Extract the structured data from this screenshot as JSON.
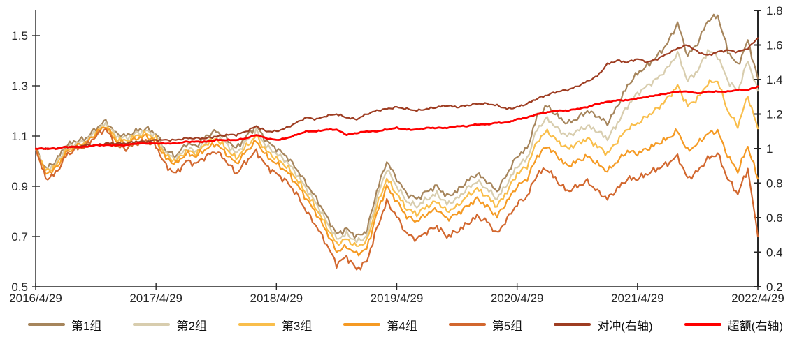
{
  "chart_data": {
    "type": "line",
    "title": "",
    "grid": false,
    "legend_position": "bottom",
    "x_axis": {
      "labels": [
        "2016/4/29",
        "2017/4/29",
        "2018/4/29",
        "2019/4/29",
        "2020/4/29",
        "2021/4/29",
        "2022/4/29"
      ],
      "months_per_label": 12,
      "total_months": 72
    },
    "left_axis": {
      "tick_labels": [
        "1.5",
        "1.3",
        "1.1",
        "0.9",
        "0.7",
        "0.5"
      ],
      "tick_values": [
        1.5,
        1.3,
        1.1,
        0.9,
        0.7,
        0.5
      ],
      "range": [
        0.5,
        1.6
      ]
    },
    "right_axis": {
      "tick_labels": [
        "1.8",
        "1.6",
        "1.4",
        "1.2",
        "1",
        "0.8",
        "0.6",
        "0.4",
        "0.2"
      ],
      "tick_values": [
        1.8,
        1.6,
        1.4,
        1.2,
        1.0,
        0.8,
        0.6,
        0.4,
        0.2
      ],
      "range": [
        0.2,
        1.8
      ]
    },
    "axis_color": "#262626",
    "series": [
      {
        "name": "第1组",
        "axis": "left",
        "color": "#A6855C",
        "width": 2.2,
        "jitter": 0.012,
        "values": [
          1.05,
          0.97,
          1.0,
          1.06,
          1.08,
          1.09,
          1.13,
          1.16,
          1.11,
          1.1,
          1.12,
          1.13,
          1.11,
          1.04,
          1.02,
          1.07,
          1.06,
          1.1,
          1.12,
          1.09,
          1.05,
          1.1,
          1.14,
          1.08,
          1.05,
          1.02,
          0.97,
          0.91,
          0.85,
          0.78,
          0.71,
          0.73,
          0.7,
          0.72,
          0.88,
          1.0,
          0.93,
          0.87,
          0.85,
          0.88,
          0.9,
          0.86,
          0.88,
          0.92,
          0.95,
          0.92,
          0.88,
          0.95,
          1.02,
          1.05,
          1.18,
          1.22,
          1.18,
          1.15,
          1.17,
          1.2,
          1.18,
          1.15,
          1.22,
          1.3,
          1.35,
          1.38,
          1.42,
          1.47,
          1.55,
          1.42,
          1.47,
          1.56,
          1.58,
          1.44,
          1.38,
          1.48,
          1.33
        ]
      },
      {
        "name": "第2组",
        "axis": "left",
        "color": "#D8CDAE",
        "width": 2.2,
        "jitter": 0.012,
        "values": [
          1.05,
          0.96,
          0.99,
          1.05,
          1.07,
          1.08,
          1.12,
          1.15,
          1.1,
          1.09,
          1.11,
          1.12,
          1.1,
          1.03,
          1.01,
          1.05,
          1.04,
          1.08,
          1.1,
          1.07,
          1.03,
          1.08,
          1.12,
          1.06,
          1.03,
          1.0,
          0.95,
          0.89,
          0.83,
          0.76,
          0.69,
          0.71,
          0.68,
          0.7,
          0.85,
          0.97,
          0.9,
          0.84,
          0.82,
          0.85,
          0.87,
          0.83,
          0.85,
          0.89,
          0.92,
          0.89,
          0.85,
          0.91,
          0.98,
          1.01,
          1.13,
          1.17,
          1.13,
          1.1,
          1.12,
          1.14,
          1.12,
          1.09,
          1.15,
          1.22,
          1.27,
          1.3,
          1.33,
          1.37,
          1.43,
          1.32,
          1.36,
          1.44,
          1.42,
          1.32,
          1.28,
          1.4,
          1.28
        ]
      },
      {
        "name": "第3组",
        "axis": "left",
        "color": "#F9BE4B",
        "width": 2.2,
        "jitter": 0.012,
        "values": [
          1.05,
          0.96,
          0.98,
          1.04,
          1.06,
          1.07,
          1.11,
          1.14,
          1.09,
          1.08,
          1.1,
          1.11,
          1.09,
          1.02,
          1.0,
          1.04,
          1.03,
          1.07,
          1.09,
          1.05,
          1.01,
          1.06,
          1.1,
          1.04,
          1.01,
          0.98,
          0.93,
          0.87,
          0.81,
          0.74,
          0.67,
          0.69,
          0.66,
          0.68,
          0.82,
          0.93,
          0.87,
          0.81,
          0.79,
          0.82,
          0.84,
          0.8,
          0.82,
          0.86,
          0.89,
          0.86,
          0.82,
          0.88,
          0.95,
          0.98,
          1.08,
          1.12,
          1.08,
          1.05,
          1.07,
          1.09,
          1.06,
          1.03,
          1.08,
          1.13,
          1.15,
          1.18,
          1.21,
          1.25,
          1.3,
          1.22,
          1.25,
          1.31,
          1.32,
          1.2,
          1.14,
          1.26,
          1.13
        ]
      },
      {
        "name": "第4组",
        "axis": "left",
        "color": "#F59A23",
        "width": 2.2,
        "jitter": 0.012,
        "values": [
          1.05,
          0.95,
          0.97,
          1.03,
          1.06,
          1.07,
          1.11,
          1.14,
          1.08,
          1.07,
          1.09,
          1.1,
          1.08,
          1.01,
          0.99,
          1.03,
          1.02,
          1.05,
          1.07,
          1.03,
          0.99,
          1.04,
          1.08,
          1.02,
          0.99,
          0.96,
          0.91,
          0.85,
          0.79,
          0.72,
          0.64,
          0.66,
          0.63,
          0.65,
          0.79,
          0.9,
          0.84,
          0.78,
          0.76,
          0.79,
          0.81,
          0.77,
          0.79,
          0.82,
          0.85,
          0.82,
          0.78,
          0.84,
          0.9,
          0.93,
          1.02,
          1.06,
          1.02,
          0.98,
          1.0,
          1.02,
          0.99,
          0.96,
          1.0,
          1.04,
          1.03,
          1.05,
          1.07,
          1.09,
          1.12,
          1.04,
          1.07,
          1.11,
          1.12,
          1.02,
          0.96,
          1.06,
          0.93
        ]
      },
      {
        "name": "第5组",
        "axis": "left",
        "color": "#D2672E",
        "width": 2.2,
        "jitter": 0.013,
        "values": [
          1.05,
          0.93,
          0.95,
          1.02,
          1.05,
          1.06,
          1.1,
          1.13,
          1.06,
          1.05,
          1.07,
          1.08,
          1.06,
          0.98,
          0.95,
          1.0,
          0.99,
          1.02,
          1.04,
          1.0,
          0.95,
          1.0,
          1.04,
          0.98,
          0.95,
          0.92,
          0.87,
          0.8,
          0.74,
          0.67,
          0.59,
          0.62,
          0.57,
          0.6,
          0.73,
          0.84,
          0.78,
          0.71,
          0.69,
          0.72,
          0.74,
          0.7,
          0.72,
          0.75,
          0.78,
          0.76,
          0.71,
          0.77,
          0.83,
          0.86,
          0.95,
          0.97,
          0.92,
          0.88,
          0.9,
          0.92,
          0.88,
          0.85,
          0.89,
          0.93,
          0.93,
          0.95,
          0.97,
          0.99,
          1.02,
          0.93,
          0.96,
          1.01,
          1.03,
          0.93,
          0.87,
          0.97,
          0.7
        ]
      },
      {
        "name": "对冲(右轴)",
        "axis": "right",
        "color": "#9E3D22",
        "width": 2.2,
        "jitter": 0.006,
        "values": [
          1.0,
          1.0,
          1.0,
          1.01,
          1.01,
          1.02,
          1.02,
          1.03,
          1.03,
          1.03,
          1.04,
          1.04,
          1.05,
          1.05,
          1.05,
          1.06,
          1.06,
          1.06,
          1.07,
          1.08,
          1.08,
          1.1,
          1.13,
          1.1,
          1.1,
          1.12,
          1.15,
          1.18,
          1.17,
          1.19,
          1.2,
          1.18,
          1.17,
          1.2,
          1.22,
          1.23,
          1.24,
          1.23,
          1.22,
          1.23,
          1.24,
          1.25,
          1.24,
          1.25,
          1.26,
          1.26,
          1.25,
          1.23,
          1.24,
          1.26,
          1.29,
          1.31,
          1.33,
          1.34,
          1.36,
          1.39,
          1.42,
          1.49,
          1.51,
          1.5,
          1.52,
          1.5,
          1.52,
          1.55,
          1.58,
          1.6,
          1.56,
          1.54,
          1.56,
          1.57,
          1.56,
          1.58,
          1.64
        ]
      },
      {
        "name": "超额(右轴)",
        "axis": "right",
        "color": "#FE0000",
        "width": 2.8,
        "jitter": 0.003,
        "values": [
          1.0,
          1.0,
          1.0,
          1.01,
          1.01,
          1.01,
          1.02,
          1.02,
          1.02,
          1.02,
          1.03,
          1.03,
          1.03,
          1.03,
          1.03,
          1.04,
          1.04,
          1.04,
          1.05,
          1.05,
          1.05,
          1.06,
          1.08,
          1.06,
          1.05,
          1.06,
          1.08,
          1.1,
          1.1,
          1.11,
          1.11,
          1.08,
          1.09,
          1.1,
          1.1,
          1.11,
          1.12,
          1.11,
          1.11,
          1.12,
          1.12,
          1.12,
          1.13,
          1.13,
          1.14,
          1.14,
          1.15,
          1.15,
          1.17,
          1.18,
          1.2,
          1.21,
          1.22,
          1.22,
          1.23,
          1.24,
          1.26,
          1.27,
          1.28,
          1.28,
          1.29,
          1.3,
          1.31,
          1.32,
          1.33,
          1.33,
          1.32,
          1.33,
          1.33,
          1.33,
          1.34,
          1.34,
          1.36
        ]
      }
    ]
  }
}
